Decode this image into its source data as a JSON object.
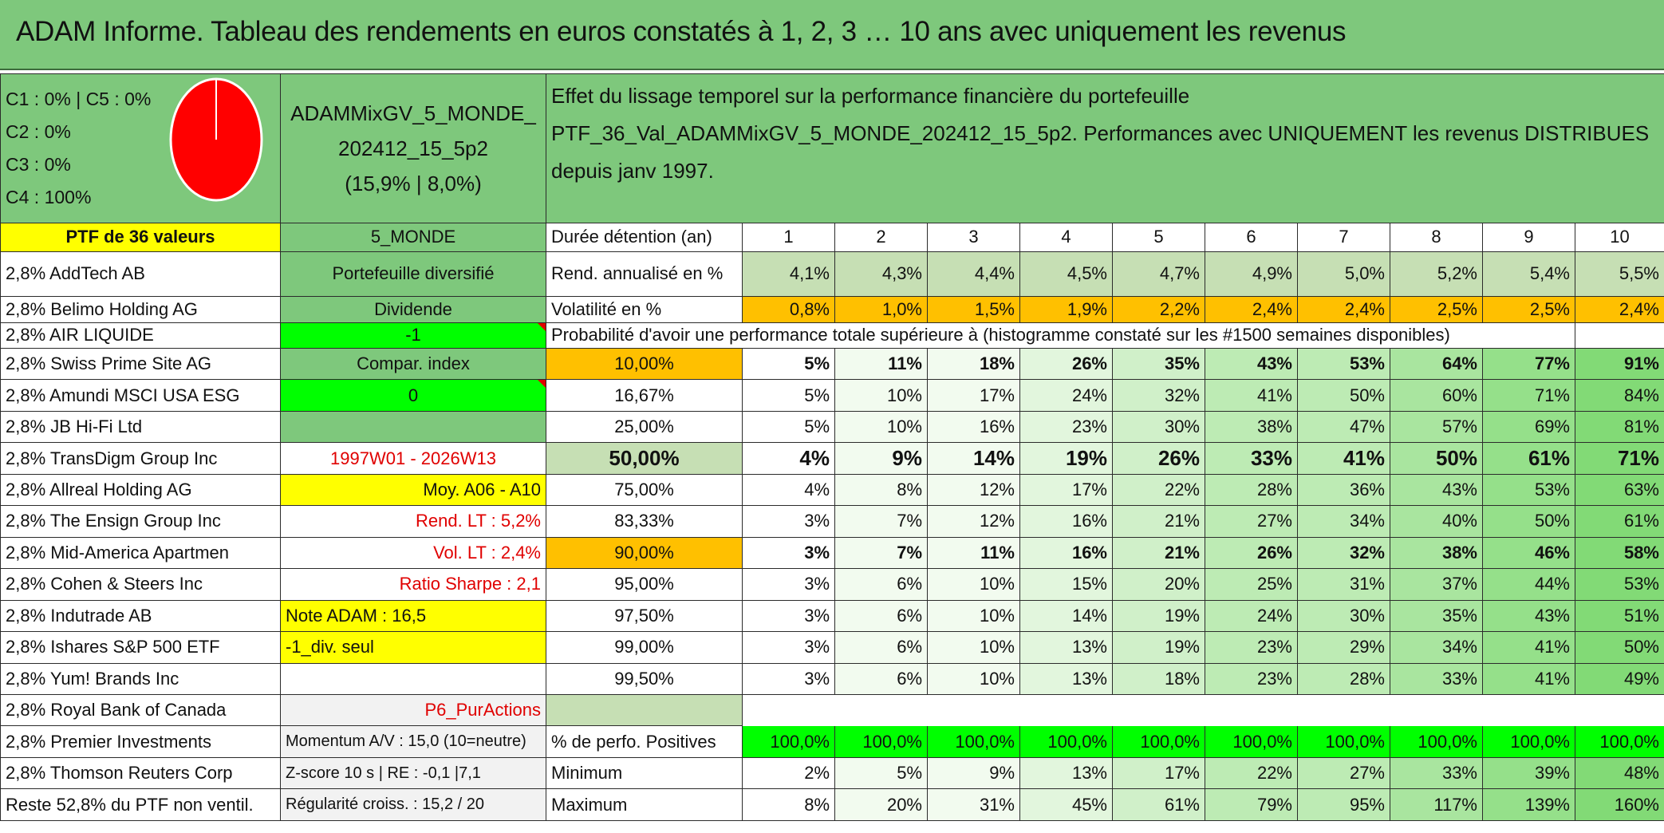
{
  "title": "ADAM Informe. Tableau des rendements en euros constatés à 1, 2, 3 … 10 ans avec uniquement les revenus",
  "pie": {
    "legend": [
      "C1 : 0% | C5 : 0%",
      "C2 : 0%",
      "C3 : 0%",
      "C4 : 100%"
    ],
    "color": "#ff0000"
  },
  "portfolio": {
    "name": "ADAMMixGV_5_MONDE_202412_15_5p2",
    "stats": "(15,9% | 8,0%)",
    "count_label": "PTF de 36 valeurs",
    "zone": "5_MONDE"
  },
  "header_text": "Effet du lissage temporel sur la performance financière du portefeuille PTF_36_Val_ADAMMixGV_5_MONDE_202412_15_5p2. Performances avec UNIQUEMENT les revenus DISTRIBUES depuis janv 1997.",
  "holdings": [
    "2,8% AddTech AB",
    "2,8% Belimo Holding AG",
    "2,8% AIR LIQUIDE",
    "2,8% Swiss Prime Site AG",
    "2,8% Amundi MSCI USA ESG",
    "2,8% JB Hi-Fi Ltd",
    "2,8% TransDigm Group Inc",
    "2,8% Allreal Holding AG",
    "2,8% The Ensign Group Inc",
    "2,8% Mid-America Apartmen",
    "2,8% Cohen & Steers Inc",
    "2,8% Indutrade AB",
    "2,8% Ishares S&P 500 ETF",
    "2,8% Yum! Brands Inc",
    "2,8% Royal Bank of Canada",
    "2,8% Premier Investments",
    "2,8% Thomson Reuters Corp",
    "Reste 52,8% du PTF non ventil."
  ],
  "info": {
    "portfolio_type": "Portefeuille diversifié",
    "dividend_label": "Dividende",
    "dividend_value": "-1",
    "compar_label": "Compar. index",
    "compar_value": "0",
    "period": "1997W01 - 2026W13",
    "moy": "Moy. A06 - A10",
    "rend_lt": "Rend. LT : 5,2%",
    "vol_lt": "Vol. LT : 2,4%",
    "sharpe": "Ratio Sharpe : 2,1",
    "note": "Note ADAM : 16,5",
    "div_seul": "-1_div. seul",
    "pur_actions": "P6_PurActions",
    "momentum": "Momentum A/V : 15,0 (10=neutre)",
    "zscore": "Z-score 10 s | RE : -0,1 |7,1",
    "regularite": "Régularité croiss. : 15,2 / 20"
  },
  "table": {
    "duration_label": "Durée détention (an)",
    "years": [
      "1",
      "2",
      "3",
      "4",
      "5",
      "6",
      "7",
      "8",
      "9",
      "10"
    ],
    "rend_label": "Rend. annualisé en %",
    "rend": [
      "4,1%",
      "4,3%",
      "4,4%",
      "4,5%",
      "4,7%",
      "4,9%",
      "5,0%",
      "5,2%",
      "5,4%",
      "5,5%"
    ],
    "vol_label": "Volatilité en %",
    "vol": [
      "0,8%",
      "1,0%",
      "1,5%",
      "1,9%",
      "2,2%",
      "2,4%",
      "2,4%",
      "2,5%",
      "2,5%",
      "2,4%"
    ],
    "prob_label": "Probabilité d'avoir une performance totale supérieure à (histogramme constaté sur les #1500 semaines disponibles)",
    "prob_rows": [
      {
        "pct": "10,00%",
        "v": [
          "5%",
          "11%",
          "18%",
          "26%",
          "35%",
          "43%",
          "53%",
          "64%",
          "77%",
          "91%"
        ]
      },
      {
        "pct": "16,67%",
        "v": [
          "5%",
          "10%",
          "17%",
          "24%",
          "32%",
          "41%",
          "50%",
          "60%",
          "71%",
          "84%"
        ]
      },
      {
        "pct": "25,00%",
        "v": [
          "5%",
          "10%",
          "16%",
          "23%",
          "30%",
          "38%",
          "47%",
          "57%",
          "69%",
          "81%"
        ]
      },
      {
        "pct": "50,00%",
        "v": [
          "4%",
          "9%",
          "14%",
          "19%",
          "26%",
          "33%",
          "41%",
          "50%",
          "61%",
          "71%"
        ]
      },
      {
        "pct": "75,00%",
        "v": [
          "4%",
          "8%",
          "12%",
          "17%",
          "22%",
          "28%",
          "36%",
          "43%",
          "53%",
          "63%"
        ]
      },
      {
        "pct": "83,33%",
        "v": [
          "3%",
          "7%",
          "12%",
          "16%",
          "21%",
          "27%",
          "34%",
          "40%",
          "50%",
          "61%"
        ]
      },
      {
        "pct": "90,00%",
        "v": [
          "3%",
          "7%",
          "11%",
          "16%",
          "21%",
          "26%",
          "32%",
          "38%",
          "46%",
          "58%"
        ]
      },
      {
        "pct": "95,00%",
        "v": [
          "3%",
          "6%",
          "10%",
          "15%",
          "20%",
          "25%",
          "31%",
          "37%",
          "44%",
          "53%"
        ]
      },
      {
        "pct": "97,50%",
        "v": [
          "3%",
          "6%",
          "10%",
          "14%",
          "19%",
          "24%",
          "30%",
          "35%",
          "43%",
          "51%"
        ]
      },
      {
        "pct": "99,00%",
        "v": [
          "3%",
          "6%",
          "10%",
          "13%",
          "19%",
          "23%",
          "29%",
          "34%",
          "41%",
          "50%"
        ]
      },
      {
        "pct": "99,50%",
        "v": [
          "3%",
          "6%",
          "10%",
          "13%",
          "18%",
          "23%",
          "28%",
          "33%",
          "41%",
          "49%"
        ]
      }
    ],
    "pos_label": "% de perfo. Positives",
    "pos": [
      "100,0%",
      "100,0%",
      "100,0%",
      "100,0%",
      "100,0%",
      "100,0%",
      "100,0%",
      "100,0%",
      "100,0%",
      "100,0%"
    ],
    "min_label": "Minimum",
    "min": [
      "2%",
      "5%",
      "9%",
      "13%",
      "17%",
      "22%",
      "27%",
      "33%",
      "39%",
      "48%"
    ],
    "max_label": "Maximum",
    "max": [
      "8%",
      "20%",
      "31%",
      "45%",
      "61%",
      "79%",
      "95%",
      "117%",
      "139%",
      "160%"
    ]
  }
}
